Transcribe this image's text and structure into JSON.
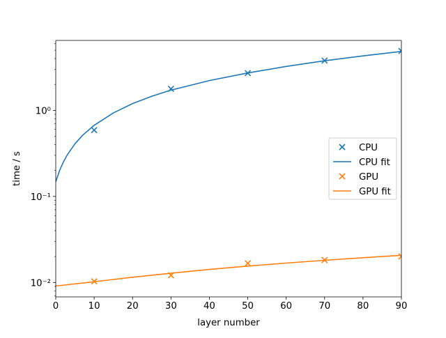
{
  "chart_data": {
    "type": "scatter",
    "title": "",
    "xlabel": "layer number",
    "ylabel": "time / s",
    "xlim": [
      0,
      90
    ],
    "ylim": [
      0.0068,
      6.5
    ],
    "yscale": "log",
    "grid": false,
    "legend_position": "center-right",
    "x_ticks": [
      0,
      10,
      20,
      30,
      40,
      50,
      60,
      70,
      80,
      90
    ],
    "y_ticks": [
      0.01,
      0.1,
      1
    ],
    "y_tick_labels": [
      "10⁻²",
      "10⁻¹",
      "10⁰"
    ],
    "series": [
      {
        "name": "CPU",
        "kind": "markers",
        "marker": "x",
        "color": "#1f77b4",
        "x": [
          10,
          30,
          50,
          70,
          90
        ],
        "y": [
          0.59,
          1.78,
          2.71,
          3.79,
          4.9
        ]
      },
      {
        "name": "CPU fit",
        "kind": "line",
        "color": "#1f77b4",
        "x": [
          0,
          1,
          2,
          3,
          5,
          7,
          10,
          15,
          20,
          25,
          30,
          40,
          50,
          60,
          70,
          80,
          90
        ],
        "y": [
          0.148,
          0.2,
          0.252,
          0.304,
          0.409,
          0.514,
          0.671,
          0.933,
          1.2,
          1.46,
          1.72,
          2.22,
          2.72,
          3.24,
          3.77,
          4.3,
          4.84
        ]
      },
      {
        "name": "GPU",
        "kind": "markers",
        "marker": "x",
        "color": "#ff7f0e",
        "x": [
          10,
          30,
          50,
          70,
          90
        ],
        "y": [
          0.0103,
          0.0121,
          0.0167,
          0.0182,
          0.0201
        ]
      },
      {
        "name": "GPU fit",
        "kind": "line",
        "color": "#ff7f0e",
        "x": [
          0,
          10,
          20,
          30,
          40,
          50,
          60,
          70,
          80,
          90
        ],
        "y": [
          0.0091,
          0.0102,
          0.0115,
          0.0128,
          0.0142,
          0.0155,
          0.0168,
          0.0181,
          0.0194,
          0.0207
        ]
      }
    ]
  }
}
